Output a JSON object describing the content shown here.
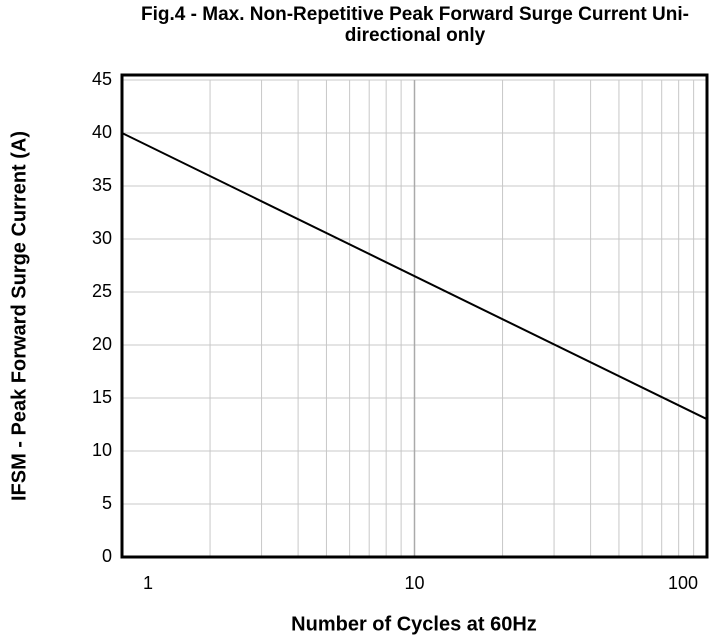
{
  "chart_data": {
    "type": "line",
    "title": "Fig.4 - Max. Non-Repetitive Peak Forward Surge Current Uni-directional only",
    "x_label": "Number of Cycles at 60Hz",
    "y_label": "IFSM - Peak Forward Surge Current (A)",
    "x": [
      1,
      100
    ],
    "series": [
      {
        "name": "IFSM",
        "color": "#000000",
        "values": [
          40,
          13
        ]
      }
    ],
    "xlim": [
      1,
      100
    ],
    "xscale": "log",
    "xticks": [
      1,
      10,
      100
    ],
    "xminor": [
      2,
      3,
      4,
      5,
      6,
      7,
      8,
      9,
      20,
      30,
      40,
      50,
      60,
      70,
      80,
      90
    ],
    "ylim": [
      0,
      45
    ],
    "yticks": [
      0,
      5,
      10,
      15,
      20,
      25,
      30,
      35,
      40,
      45
    ],
    "grid": true
  }
}
